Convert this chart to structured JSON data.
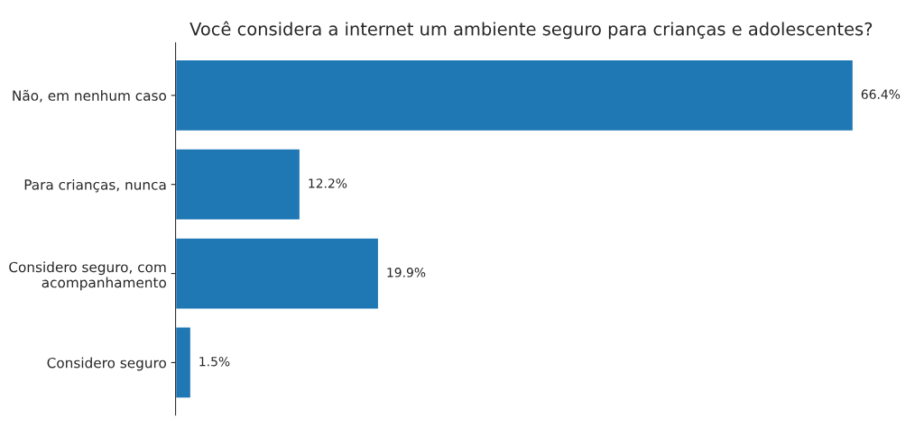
{
  "chart_data": {
    "type": "bar",
    "orientation": "horizontal",
    "title": "Você considera a internet um ambiente seguro para crianças e adolescentes?",
    "categories": [
      "Não, em nenhum caso",
      "Para crianças, nunca",
      "Considero seguro, com\nacompanhamento",
      "Considero seguro"
    ],
    "values": [
      66.4,
      12.2,
      19.9,
      1.5
    ],
    "color": "#1f77b4",
    "value_labels": [
      "66.4%",
      "12.2%",
      "19.9%",
      "1.5%"
    ],
    "tick_labels": "y",
    "grid": false,
    "legend": false
  }
}
